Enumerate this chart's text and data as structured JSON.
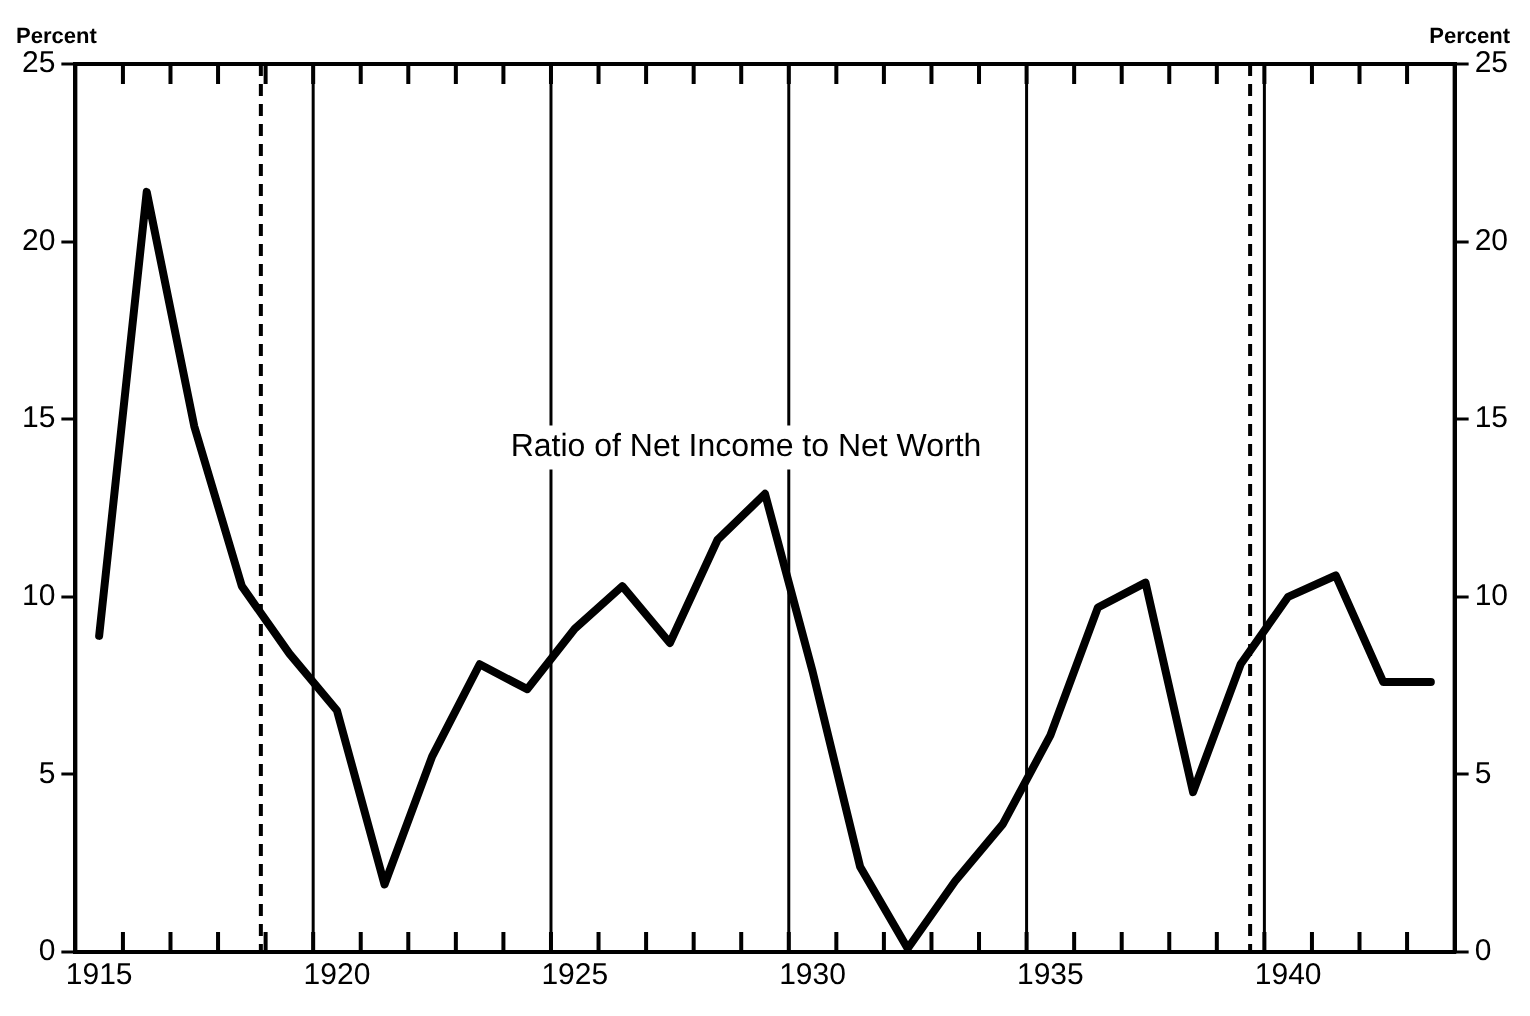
{
  "chart_data": {
    "type": "line",
    "ylabel": "Percent",
    "y2label": "Percent",
    "x": [
      1915.5,
      1916.5,
      1917.5,
      1918.5,
      1919.5,
      1920.5,
      1921.5,
      1922.5,
      1923.5,
      1924.5,
      1925.5,
      1926.5,
      1927.5,
      1928.5,
      1929.5,
      1930.5,
      1931.5,
      1932.5,
      1933.5,
      1934.5,
      1935.5,
      1936.5,
      1937.5,
      1938.5,
      1939.5,
      1940.5,
      1941.5,
      1942.5,
      1943.5
    ],
    "series": [
      {
        "name": "Ratio of Net Income to Net Worth",
        "color": "#000000",
        "values": [
          8.9,
          21.4,
          14.8,
          10.3,
          8.4,
          6.8,
          1.9,
          5.5,
          8.1,
          7.4,
          9.1,
          10.3,
          8.7,
          11.6,
          12.9,
          7.9,
          2.4,
          0.1,
          2.0,
          3.6,
          6.1,
          9.7,
          10.4,
          4.5,
          8.1,
          10.0,
          10.6,
          7.6,
          7.6
        ]
      }
    ],
    "xlim": [
      1915,
      1944
    ],
    "xticks": [
      {
        "value": 1915.5,
        "label": "1915"
      },
      {
        "value": 1916,
        "label": null
      },
      {
        "value": 1917,
        "label": null
      },
      {
        "value": 1918,
        "label": null
      },
      {
        "value": 1919,
        "label": null
      },
      {
        "value": 1920,
        "label": null
      },
      {
        "value": 1920.5,
        "label": "1920"
      },
      {
        "value": 1921,
        "label": null
      },
      {
        "value": 1922,
        "label": null
      },
      {
        "value": 1923,
        "label": null
      },
      {
        "value": 1924,
        "label": null
      },
      {
        "value": 1925,
        "label": null
      },
      {
        "value": 1925.5,
        "label": "1925"
      },
      {
        "value": 1926,
        "label": null
      },
      {
        "value": 1927,
        "label": null
      },
      {
        "value": 1928,
        "label": null
      },
      {
        "value": 1929,
        "label": null
      },
      {
        "value": 1930,
        "label": null
      },
      {
        "value": 1930.5,
        "label": "1930"
      },
      {
        "value": 1931,
        "label": null
      },
      {
        "value": 1932,
        "label": null
      },
      {
        "value": 1933,
        "label": null
      },
      {
        "value": 1934,
        "label": null
      },
      {
        "value": 1935,
        "label": null
      },
      {
        "value": 1935.5,
        "label": "1935"
      },
      {
        "value": 1936,
        "label": null
      },
      {
        "value": 1937,
        "label": null
      },
      {
        "value": 1938,
        "label": null
      },
      {
        "value": 1939,
        "label": null
      },
      {
        "value": 1940,
        "label": null
      },
      {
        "value": 1940.5,
        "label": "1940"
      },
      {
        "value": 1941,
        "label": null
      },
      {
        "value": 1942,
        "label": null
      },
      {
        "value": 1943,
        "label": null
      }
    ],
    "ylim": [
      0,
      25
    ],
    "yticks": [
      0,
      5,
      10,
      15,
      20,
      25
    ],
    "y2lim": [
      0,
      25
    ],
    "y2ticks": [
      0,
      5,
      10,
      15,
      20,
      25
    ],
    "ref_lines": [
      {
        "axis": "x",
        "value": 1918.9,
        "line_style": "dashed",
        "color": "#000000"
      },
      {
        "axis": "x",
        "value": 1920,
        "line_style": "solid",
        "color": "#000000"
      },
      {
        "axis": "x",
        "value": 1925,
        "line_style": "solid",
        "color": "#000000"
      },
      {
        "axis": "x",
        "value": 1930,
        "line_style": "solid",
        "color": "#000000"
      },
      {
        "axis": "x",
        "value": 1935,
        "line_style": "solid",
        "color": "#000000"
      },
      {
        "axis": "x",
        "value": 1939.7,
        "line_style": "dashed",
        "color": "#000000"
      },
      {
        "axis": "x",
        "value": 1940,
        "line_style": "solid",
        "color": "#000000"
      }
    ],
    "grid": false,
    "legend": false,
    "marker": "none",
    "line_style": "solid"
  }
}
